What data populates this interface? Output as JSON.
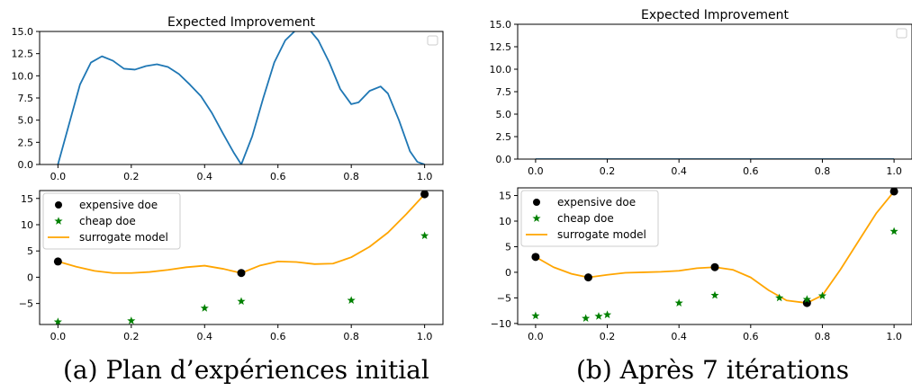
{
  "figure": {
    "caption_a": "(a) Plan d’expériences initial",
    "caption_b": "(b) Après 7 itérations"
  },
  "colors": {
    "ei": "#1f77b4",
    "model": "#ffa500",
    "expensive": "#000000",
    "cheap": "#008000"
  },
  "chart_data": [
    {
      "type": "line",
      "panel": "a-top",
      "title": "Expected Improvement",
      "xlim": [
        -0.05,
        1.05
      ],
      "ylim": [
        0,
        15
      ],
      "xticks": [
        "0.0",
        "0.2",
        "0.4",
        "0.6",
        "0.8",
        "1.0"
      ],
      "yticks": [
        "0.0",
        "2.5",
        "5.0",
        "7.5",
        "10.0",
        "12.5",
        "15.0"
      ],
      "legend": "top-right (empty)",
      "series": [
        {
          "x": [
            0.0,
            0.03,
            0.06,
            0.09,
            0.12,
            0.15,
            0.18,
            0.21,
            0.24,
            0.27,
            0.3,
            0.33,
            0.36,
            0.39,
            0.42,
            0.45,
            0.48,
            0.5,
            0.53,
            0.56,
            0.59,
            0.62,
            0.65,
            0.67,
            0.69,
            0.71,
            0.74,
            0.77,
            0.8,
            0.82,
            0.85,
            0.88,
            0.9,
            0.93,
            0.96,
            0.98,
            1.0
          ],
          "y": [
            0.0,
            4.5,
            9.0,
            11.5,
            12.2,
            11.7,
            10.8,
            10.7,
            11.1,
            11.3,
            11.0,
            10.2,
            9.0,
            7.7,
            5.8,
            3.5,
            1.3,
            0.0,
            3.2,
            7.5,
            11.5,
            14.0,
            15.2,
            15.3,
            15.0,
            14.0,
            11.5,
            8.5,
            6.8,
            7.0,
            8.3,
            8.8,
            8.0,
            5.0,
            1.5,
            0.3,
            0.0
          ]
        }
      ]
    },
    {
      "type": "scatter",
      "panel": "a-bottom",
      "xlim": [
        -0.05,
        1.05
      ],
      "ylim": [
        -9,
        16.5
      ],
      "xticks": [
        "0.0",
        "0.2",
        "0.4",
        "0.6",
        "0.8",
        "1.0"
      ],
      "yticks": [
        "−5",
        "0",
        "5",
        "10",
        "15"
      ],
      "legend": "top-left",
      "legend_labels": [
        "expensive doe",
        "cheap doe",
        "surrogate model"
      ],
      "expensive": {
        "x": [
          0.0,
          0.5,
          1.0
        ],
        "y": [
          3.0,
          0.8,
          15.8
        ]
      },
      "cheap": {
        "x": [
          0.0,
          0.2,
          0.4,
          0.5,
          0.8,
          1.0
        ],
        "y": [
          -8.5,
          -8.3,
          -5.9,
          -4.6,
          -4.4,
          7.9
        ]
      },
      "model": {
        "x": [
          0.0,
          0.05,
          0.1,
          0.15,
          0.2,
          0.25,
          0.3,
          0.35,
          0.4,
          0.45,
          0.5,
          0.55,
          0.6,
          0.65,
          0.7,
          0.75,
          0.8,
          0.85,
          0.9,
          0.95,
          1.0
        ],
        "y": [
          3.0,
          2.0,
          1.2,
          0.8,
          0.8,
          1.0,
          1.4,
          1.9,
          2.2,
          1.6,
          0.8,
          2.2,
          3.0,
          2.9,
          2.5,
          2.6,
          3.8,
          5.8,
          8.5,
          12.0,
          15.8
        ]
      }
    },
    {
      "type": "line",
      "panel": "b-top",
      "title": "Expected Improvement",
      "xlim": [
        -0.05,
        1.05
      ],
      "ylim": [
        0,
        15
      ],
      "xticks": [
        "0.0",
        "0.2",
        "0.4",
        "0.6",
        "0.8",
        "1.0"
      ],
      "yticks": [
        "0.0",
        "2.5",
        "5.0",
        "7.5",
        "10.0",
        "12.5",
        "15.0"
      ],
      "legend": "top-right (empty)",
      "series": [
        {
          "x": [
            0.0,
            1.0
          ],
          "y": [
            0.0,
            0.0
          ]
        }
      ]
    },
    {
      "type": "scatter",
      "panel": "b-bottom",
      "xlim": [
        -0.05,
        1.05
      ],
      "ylim": [
        -10.2,
        16.5
      ],
      "xticks": [
        "0.0",
        "0.2",
        "0.4",
        "0.6",
        "0.8",
        "1.0"
      ],
      "yticks": [
        "−10",
        "−5",
        "0",
        "5",
        "10",
        "15"
      ],
      "legend": "top-left",
      "legend_labels": [
        "expensive doe",
        "cheap doe",
        "surrogate model"
      ],
      "expensive": {
        "x": [
          0.0,
          0.147,
          0.5,
          0.757,
          1.0
        ],
        "y": [
          3.0,
          -1.0,
          1.0,
          -6.0,
          15.8
        ]
      },
      "cheap": {
        "x": [
          0.0,
          0.14,
          0.176,
          0.2,
          0.4,
          0.5,
          0.68,
          0.757,
          0.8,
          1.0
        ],
        "y": [
          -8.5,
          -9.0,
          -8.6,
          -8.3,
          -6.0,
          -4.5,
          -5.0,
          -5.3,
          -4.6,
          8.0
        ]
      },
      "model": {
        "x": [
          0.0,
          0.05,
          0.1,
          0.147,
          0.2,
          0.25,
          0.3,
          0.35,
          0.4,
          0.45,
          0.5,
          0.55,
          0.6,
          0.65,
          0.7,
          0.757,
          0.8,
          0.85,
          0.9,
          0.95,
          1.0
        ],
        "y": [
          3.0,
          1.0,
          -0.3,
          -1.0,
          -0.5,
          -0.1,
          0.0,
          0.1,
          0.3,
          0.8,
          1.0,
          0.5,
          -1.0,
          -3.5,
          -5.5,
          -6.0,
          -4.5,
          0.5,
          6.0,
          11.5,
          15.8
        ]
      }
    }
  ]
}
